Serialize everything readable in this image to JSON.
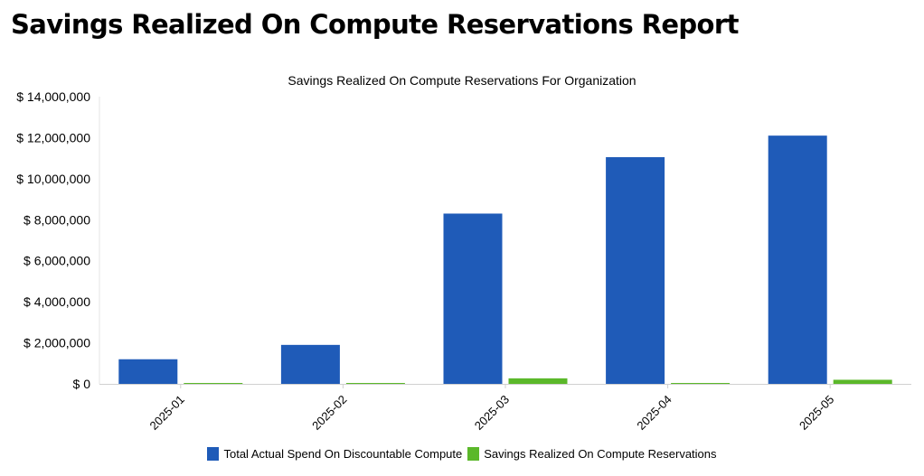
{
  "page": {
    "title": "Savings Realized On Compute Reservations Report"
  },
  "chart_data": {
    "type": "bar",
    "title": "Savings Realized On Compute Reservations For Organization",
    "xlabel": "",
    "ylabel": "",
    "categories": [
      "2025-01",
      "2025-02",
      "2025-03",
      "2025-04",
      "2025-05"
    ],
    "series": [
      {
        "name": "Total Actual Spend On Discountable Compute",
        "color": "#1f5bb8",
        "values": [
          1200000,
          1900000,
          8300000,
          11050000,
          12100000
        ]
      },
      {
        "name": "Savings Realized On Compute Reservations",
        "color": "#5bb82a",
        "values": [
          0,
          0,
          270000,
          0,
          200000
        ]
      }
    ],
    "ylim": [
      0,
      14000000
    ],
    "yticks": [
      0,
      2000000,
      4000000,
      6000000,
      8000000,
      10000000,
      12000000,
      14000000
    ],
    "ytick_labels": [
      "$ 0",
      "$ 2,000,000",
      "$ 4,000,000",
      "$ 6,000,000",
      "$ 8,000,000",
      "$ 10,000,000",
      "$ 12,000,000",
      "$ 14,000,000"
    ],
    "grid": false,
    "legend_position": "bottom"
  }
}
